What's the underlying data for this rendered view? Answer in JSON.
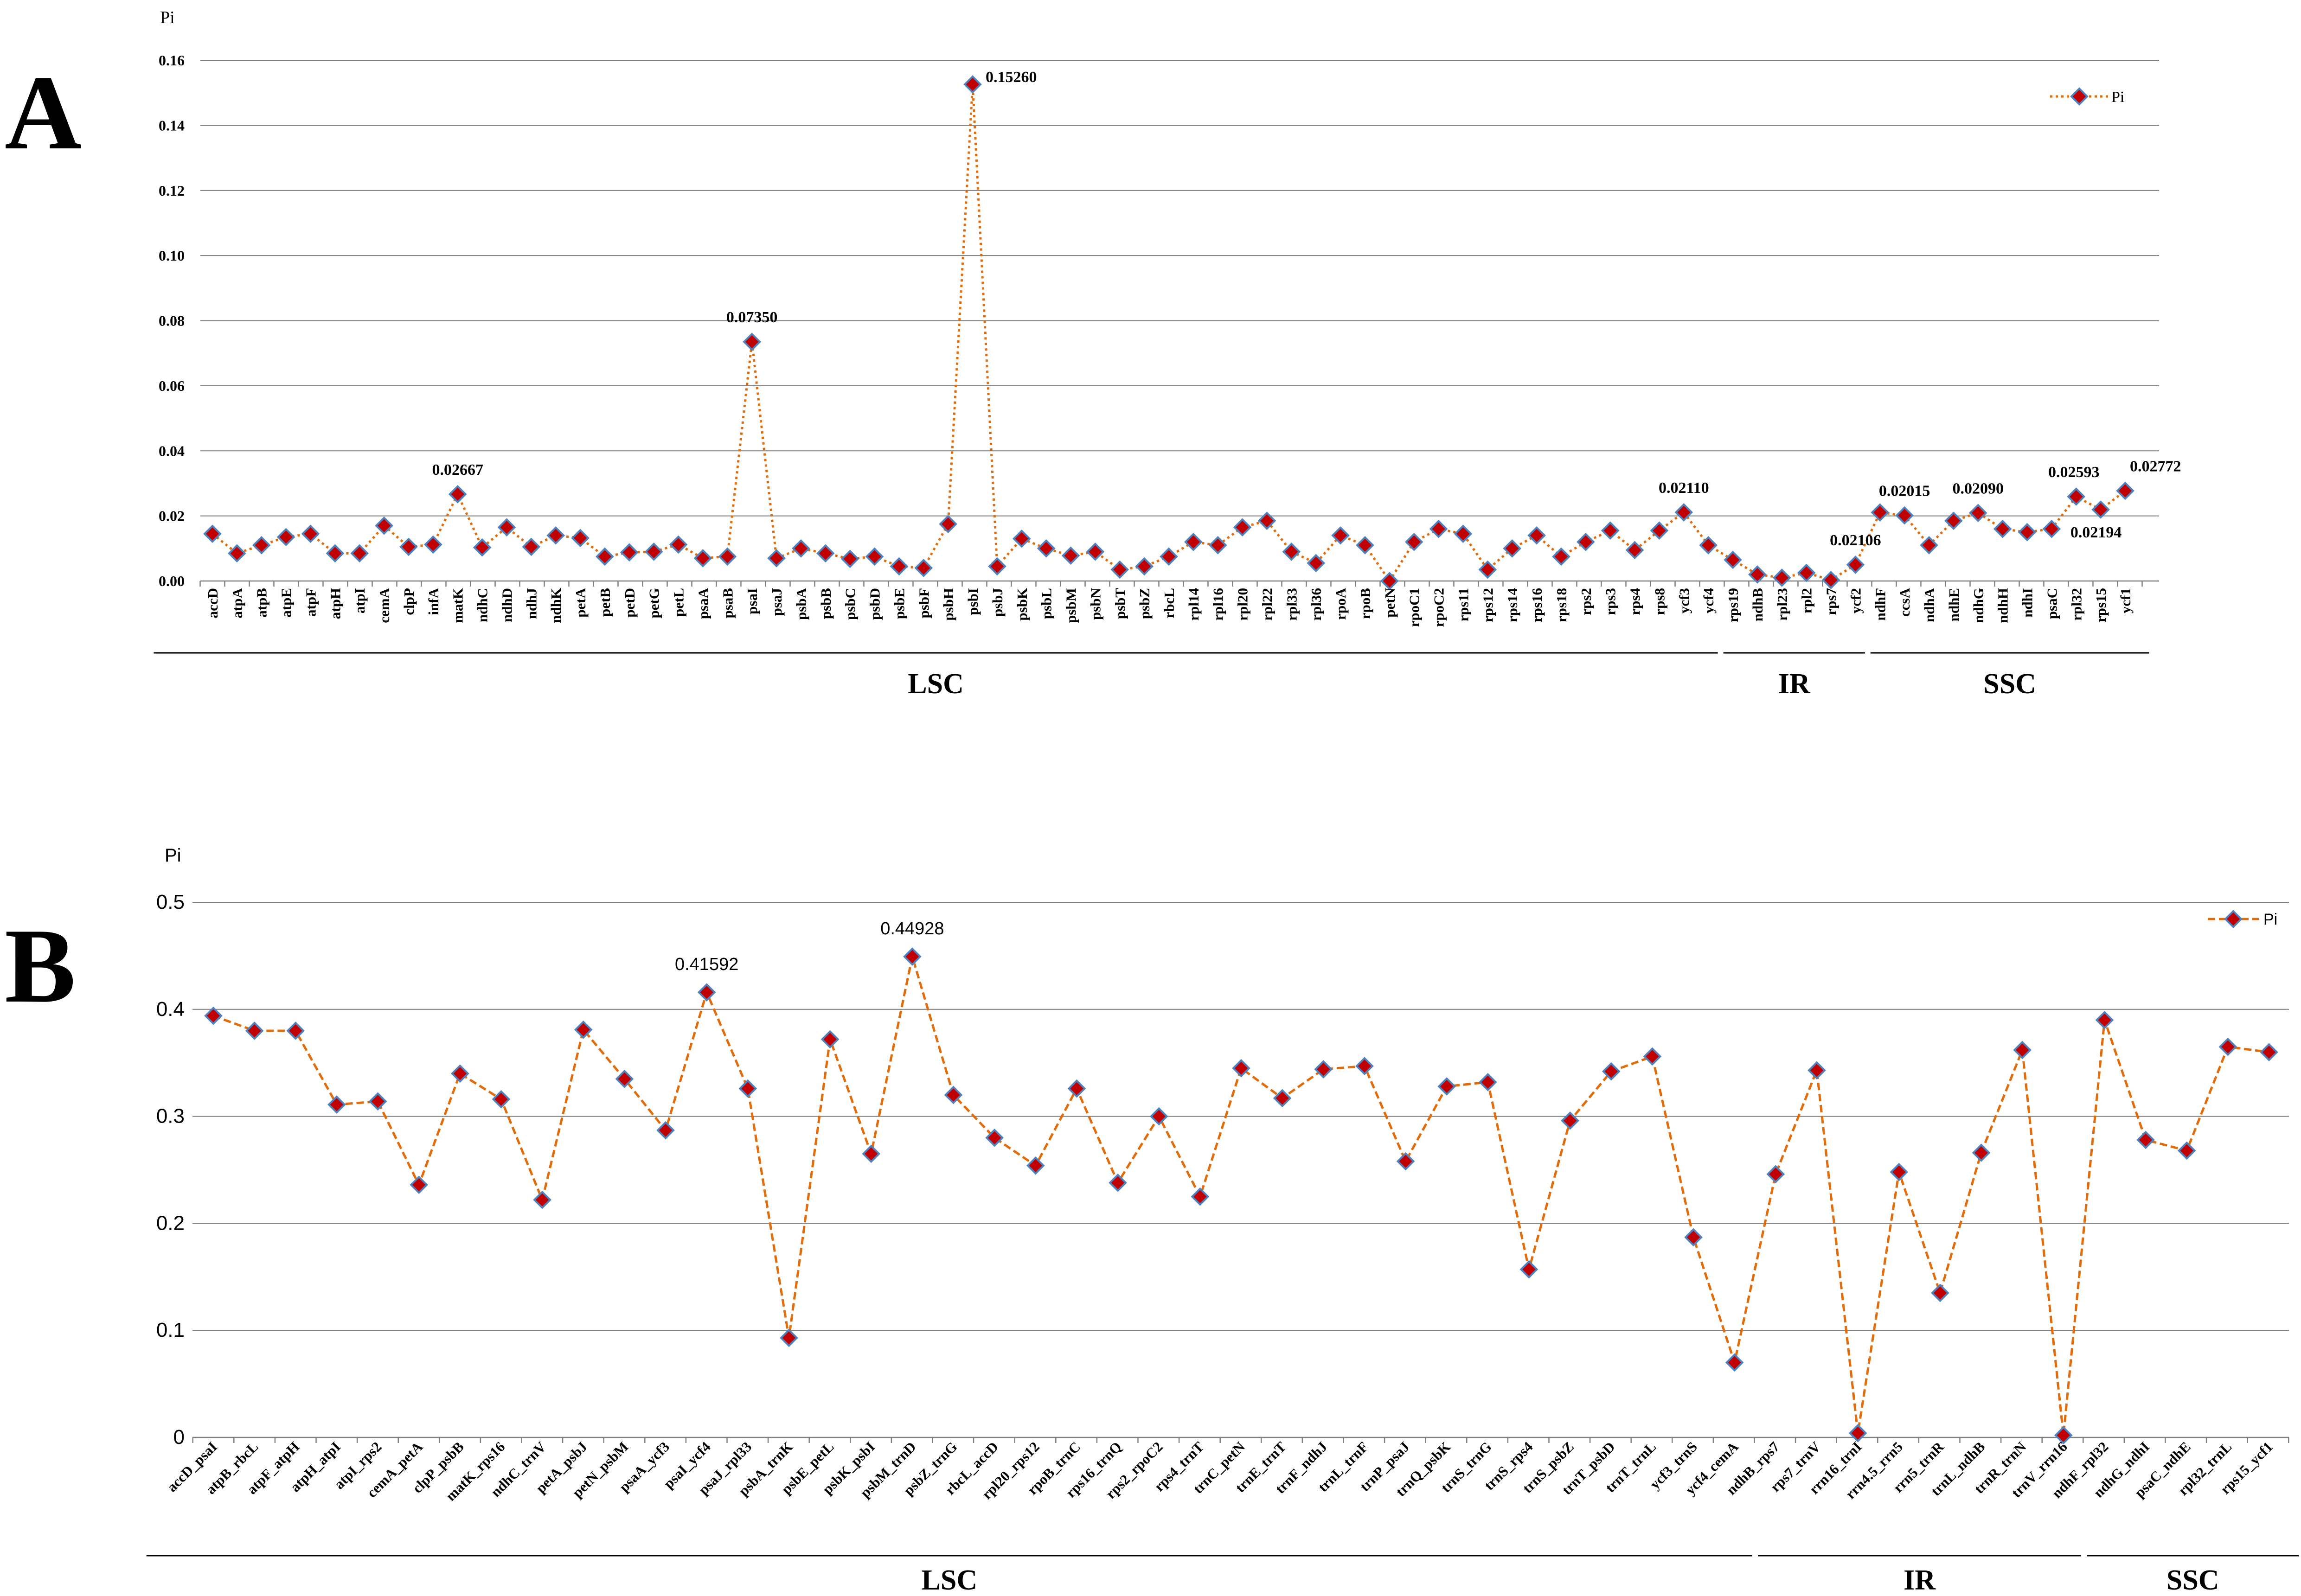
{
  "panels": {
    "a": {
      "letter": "A",
      "y_axis_label": "Pi"
    },
    "b": {
      "letter": "B",
      "y_axis_label": "Pi"
    }
  },
  "colors": {
    "series_line": "#e26b0a",
    "marker_fill": "#c00000",
    "marker_edge": "#4f81bd"
  },
  "chart_data": [
    {
      "type": "line",
      "panel": "A",
      "ylabel": "Pi",
      "ylim": [
        0,
        0.16
      ],
      "yticks": [
        "0.00",
        "0.02",
        "0.04",
        "0.06",
        "0.08",
        "0.10",
        "0.12",
        "0.14",
        "0.16"
      ],
      "grid": true,
      "legend": {
        "entries": [
          "Pi"
        ],
        "placement": "top-right"
      },
      "line_style": "dotted",
      "categories": [
        "accD",
        "atpA",
        "atpB",
        "atpE",
        "atpF",
        "atpH",
        "atpI",
        "cemA",
        "clpP",
        "infA",
        "matK",
        "ndhC",
        "ndhD",
        "ndhJ",
        "ndhK",
        "petA",
        "petB",
        "petD",
        "petG",
        "petL",
        "psaA",
        "psaB",
        "psaI",
        "psaJ",
        "psbA",
        "psbB",
        "psbC",
        "psbD",
        "psbE",
        "psbF",
        "psbH",
        "psbI",
        "psbJ",
        "psbK",
        "psbL",
        "psbM",
        "psbN",
        "psbT",
        "psbZ",
        "rbcL",
        "rpl14",
        "rpl16",
        "rpl20",
        "rpl22",
        "rpl33",
        "rpl36",
        "rpoA",
        "rpoB",
        "petN",
        "rpoC1",
        "rpoC2",
        "rps11",
        "rps12",
        "rps14",
        "rps16",
        "rps18",
        "rps2",
        "rps3",
        "rps4",
        "rps8",
        "ycf3",
        "ycf4",
        "rps19",
        "ndhB",
        "rpl23",
        "rpl2",
        "rps7",
        "ycf2",
        "ndhF",
        "ccsA",
        "ndhA",
        "ndhE",
        "ndhG",
        "ndhH",
        "ndhI",
        "psaC",
        "rpl32",
        "rps15",
        "ycf1"
      ],
      "series": [
        {
          "name": "Pi",
          "values": [
            0.0145,
            0.0085,
            0.011,
            0.0135,
            0.0145,
            0.0085,
            0.0085,
            0.017,
            0.0105,
            0.0112,
            0.02667,
            0.0103,
            0.0165,
            0.0105,
            0.014,
            0.0132,
            0.0075,
            0.0088,
            0.009,
            0.0112,
            0.007,
            0.0075,
            0.0735,
            0.007,
            0.01,
            0.0085,
            0.0068,
            0.0075,
            0.0045,
            0.004,
            0.0175,
            0.1526,
            0.0045,
            0.013,
            0.01,
            0.0078,
            0.009,
            0.0035,
            0.0045,
            0.0075,
            0.012,
            0.011,
            0.0165,
            0.0185,
            0.009,
            0.0055,
            0.014,
            0.011,
            0.0,
            0.012,
            0.016,
            0.0145,
            0.0035,
            0.01,
            0.014,
            0.0075,
            0.012,
            0.0155,
            0.0095,
            0.0155,
            0.0211,
            0.011,
            0.0065,
            0.002,
            0.001,
            0.0025,
            0.0003,
            0.005,
            0.02106,
            0.02015,
            0.011,
            0.0185,
            0.0209,
            0.016,
            0.015,
            0.016,
            0.02593,
            0.02194,
            0.02772
          ]
        }
      ],
      "annotations": [
        {
          "category": "matK",
          "text": "0.02667"
        },
        {
          "category": "psaI",
          "text": "0.07350"
        },
        {
          "category": "psbI",
          "text": "0.15260"
        },
        {
          "category": "ycf3",
          "text": "0.02110"
        },
        {
          "category": "ycf2",
          "text": "0.02106"
        },
        {
          "category": "ccsA",
          "text": "0.02015"
        },
        {
          "category": "ndhG",
          "text": "0.02090"
        },
        {
          "category": "rpl32",
          "text": "0.02593"
        },
        {
          "category": "rps15",
          "text": "0.02194"
        },
        {
          "category": "ycf1",
          "text": "0.02772"
        }
      ],
      "regions": [
        {
          "label": "LSC",
          "first": "accD",
          "last": "ycf4"
        },
        {
          "label": "IR",
          "first": "rps19",
          "last": "ycf2"
        },
        {
          "label": "SSC",
          "first": "ndhF",
          "last": "ycf1"
        }
      ]
    },
    {
      "type": "line",
      "panel": "B",
      "ylabel": "Pi",
      "ylim": [
        0,
        0.5
      ],
      "yticks": [
        "0",
        "0.1",
        "0.2",
        "0.3",
        "0.4",
        "0.5"
      ],
      "grid": true,
      "legend": {
        "entries": [
          "Pi"
        ],
        "placement": "top-right"
      },
      "line_style": "dashed",
      "categories": [
        "accD_psaI",
        "atpB_rbcL",
        "atpF_atpH",
        "atpH_atpI",
        "atpI_rps2",
        "cemA_petA",
        "clpP_psbB",
        "matK_rps16",
        "ndhC_trnV",
        "petA_psbJ",
        "petN_psbM",
        "psaA_ycf3",
        "psaI_ycf4",
        "psaJ_rpl33",
        "psbA_trnK",
        "psbE_petL",
        "psbK_psbI",
        "psbM_trnD",
        "psbZ_trnG",
        "rbcL_accD",
        "rpl20_rps12",
        "rpoB_trnC",
        "rps16_trnQ",
        "rps2_rpoC2",
        "rps4_trnT",
        "trnC_petN",
        "trnE_trnT",
        "trnF_ndhJ",
        "trnL_trnF",
        "trnP_psaJ",
        "trnQ_psbK",
        "trnS_trnG",
        "trnS_rps4",
        "trnS_psbZ",
        "trnT_psbD",
        "trnT_trnL",
        "ycf3_trnS",
        "ycf4_cemA",
        "ndhB_rps7",
        "rps7_trnV",
        "rrn16_trnI",
        "rrn4.5_rrn5",
        "rrn5_trnR",
        "trnL_ndhB",
        "trnR_trnN",
        "trnV_rrn16",
        "ndhF_rpl32",
        "ndhG_ndhI",
        "psaC_ndhE",
        "rpl32_trnL",
        "rps15_ycf1"
      ],
      "series": [
        {
          "name": "Pi",
          "values": [
            0.394,
            0.38,
            0.38,
            0.311,
            0.314,
            0.236,
            0.34,
            0.316,
            0.222,
            0.381,
            0.335,
            0.287,
            0.41592,
            0.326,
            0.093,
            0.372,
            0.265,
            0.44928,
            0.32,
            0.28,
            0.254,
            0.326,
            0.238,
            0.3,
            0.225,
            0.345,
            0.317,
            0.344,
            0.347,
            0.258,
            0.328,
            0.332,
            0.157,
            0.296,
            0.342,
            0.356,
            0.187,
            0.07,
            0.246,
            0.343,
            0.004,
            0.248,
            0.135,
            0.266,
            0.362,
            0.002,
            0.39,
            0.278,
            0.268,
            0.365,
            0.36
          ]
        }
      ],
      "annotations": [
        {
          "category": "psaI_ycf4",
          "text": "0.41592"
        },
        {
          "category": "psbM_trnD",
          "text": "0.44928"
        }
      ],
      "regions": [
        {
          "label": "LSC",
          "first": "accD_psaI",
          "last": "ycf4_cemA"
        },
        {
          "label": "IR",
          "first": "ndhB_rps7",
          "last": "trnV_rrn16"
        },
        {
          "label": "SSC",
          "first": "ndhF_rpl32",
          "last": "rps15_ycf1"
        }
      ]
    }
  ]
}
